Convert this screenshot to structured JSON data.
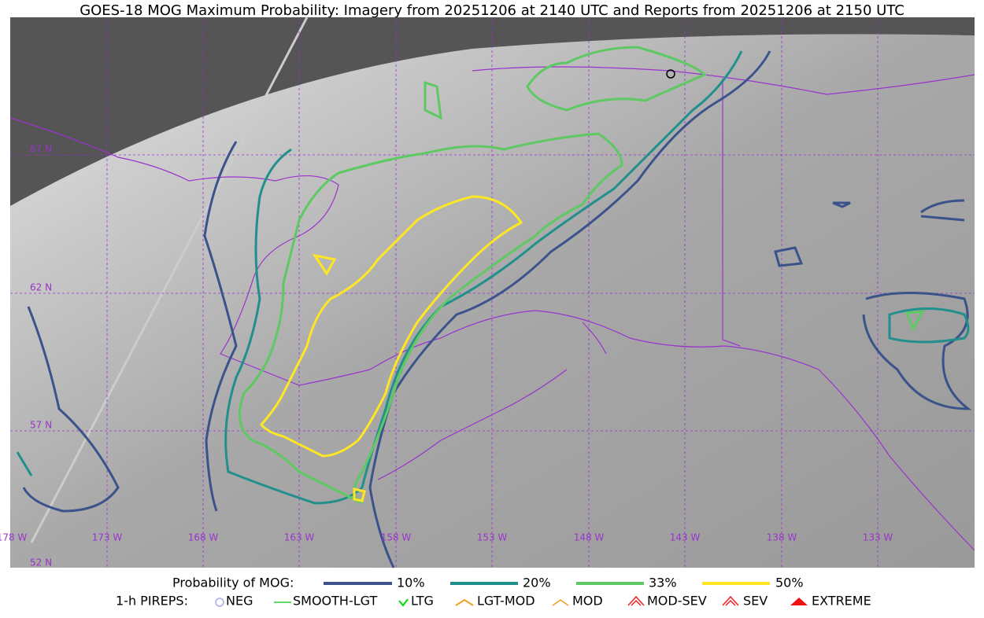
{
  "header": {
    "title": "GOES-18 MOG Maximum Probability: Imagery from 20251206 at 2140 UTC and Reports from 20251206 at 2150 UTC"
  },
  "map": {
    "latitude_labels": [
      "67 N",
      "62 N",
      "57 N",
      "52 N"
    ],
    "longitude_labels": [
      "178 W",
      "173 W",
      "168 W",
      "163 W",
      "158 W",
      "153 W",
      "148 W",
      "143 W",
      "138 W",
      "133 W"
    ]
  },
  "legend": {
    "probability_title": "Probability of MOG:",
    "probability_levels": [
      "10%",
      "20%",
      "33%",
      "50%"
    ],
    "pirep_title": "1-h PIREPS:",
    "pirep_types": [
      "NEG",
      "SMOOTH-LGT",
      "LTG",
      "LGT-MOD",
      "MOD",
      "MOD-SEV",
      "SEV",
      "EXTREME"
    ]
  }
}
